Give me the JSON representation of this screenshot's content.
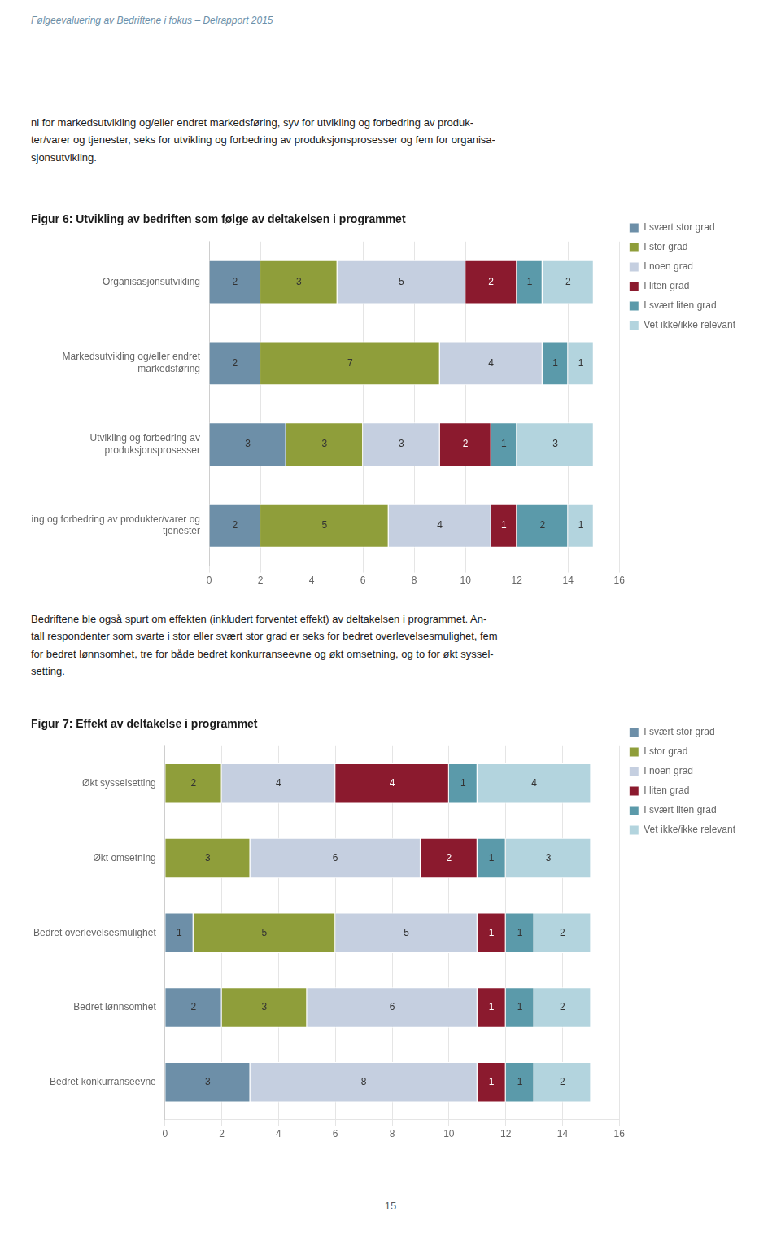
{
  "header": "Følgeevaluering av Bedriftene i fokus – Delrapport 2015",
  "page_number": "15",
  "chart_data": [
    {
      "type": "bar",
      "title": "Figur 6: Utvikling av bedriften som følge av deltakelsen i programmet",
      "annotations": [
        "ni for markedsutvikling og/eller endret markedsføring, syv for utvikling og forbedring av produk-\nter/varer og tjenester, seks for utvikling og forbedring av produksjonsprosesser og fem for organisa-\nsjonsutvikling."
      ],
      "orientation": "horizontal",
      "stacked": true,
      "data_labels": true,
      "grid": true,
      "legend": "right",
      "categories": [
        "Organisasjonsutvikling",
        "Markedsutvikling og/eller endret\nmarkedsføring",
        "Utvikling og forbedring av\nproduksjonsprosesser",
        "Utvikling og forbedring av produkter/varer og\ntjenester"
      ],
      "series": [
        {
          "name": "I svært stor grad",
          "color": "#6d8fa8",
          "values": [
            2,
            2,
            3,
            2
          ]
        },
        {
          "name": "I stor grad",
          "color": "#8f9e3a",
          "values": [
            3,
            7,
            3,
            5
          ]
        },
        {
          "name": "I noen grad",
          "color": "#c5cfe0",
          "values": [
            5,
            4,
            3,
            4
          ]
        },
        {
          "name": "I liten grad",
          "color": "#8b1a2e",
          "values": [
            2,
            0,
            2,
            1
          ]
        },
        {
          "name": "I svært liten grad",
          "color": "#5b9aaa",
          "values": [
            1,
            1,
            1,
            2
          ]
        },
        {
          "name": "Vet ikke/ikke relevant",
          "color": "#b3d4de",
          "values": [
            2,
            1,
            3,
            1
          ]
        }
      ],
      "xlim": [
        0,
        16
      ],
      "xticks": [
        0,
        2,
        4,
        6,
        8,
        10,
        12,
        14,
        16
      ]
    },
    {
      "type": "bar",
      "title": "Figur 7: Effekt av deltakelse i programmet",
      "annotations": [
        "Bedriftene ble også spurt om effekten (inkludert forventet effekt) av deltakelsen i programmet. An-\ntall respondenter som svarte i stor eller svært stor grad er seks for bedret overlevelsesmulighet, fem\nfor bedret lønnsomhet, tre for både bedret konkurranseevne og økt omsetning, og to for økt syssel-\nsetting."
      ],
      "orientation": "horizontal",
      "stacked": true,
      "data_labels": true,
      "grid": true,
      "legend": "right",
      "categories": [
        "Økt sysselsetting",
        "Økt omsetning",
        "Bedret overlevelsesmulighet",
        "Bedret lønnsomhet",
        "Bedret konkurranseevne"
      ],
      "series": [
        {
          "name": "I svært stor grad",
          "color": "#6d8fa8",
          "values": [
            0,
            0,
            1,
            2,
            3
          ]
        },
        {
          "name": "I stor grad",
          "color": "#8f9e3a",
          "values": [
            2,
            3,
            5,
            3,
            0
          ]
        },
        {
          "name": "I noen grad",
          "color": "#c5cfe0",
          "values": [
            4,
            6,
            5,
            6,
            8
          ]
        },
        {
          "name": "I liten grad",
          "color": "#8b1a2e",
          "values": [
            4,
            2,
            1,
            1,
            1
          ]
        },
        {
          "name": "I svært liten grad",
          "color": "#5b9aaa",
          "values": [
            1,
            1,
            1,
            1,
            1
          ]
        },
        {
          "name": "Vet ikke/ikke relevant",
          "color": "#b3d4de",
          "values": [
            4,
            3,
            2,
            2,
            2
          ]
        }
      ],
      "xlim": [
        0,
        16
      ],
      "xticks": [
        0,
        2,
        4,
        6,
        8,
        10,
        12,
        14,
        16
      ]
    }
  ]
}
